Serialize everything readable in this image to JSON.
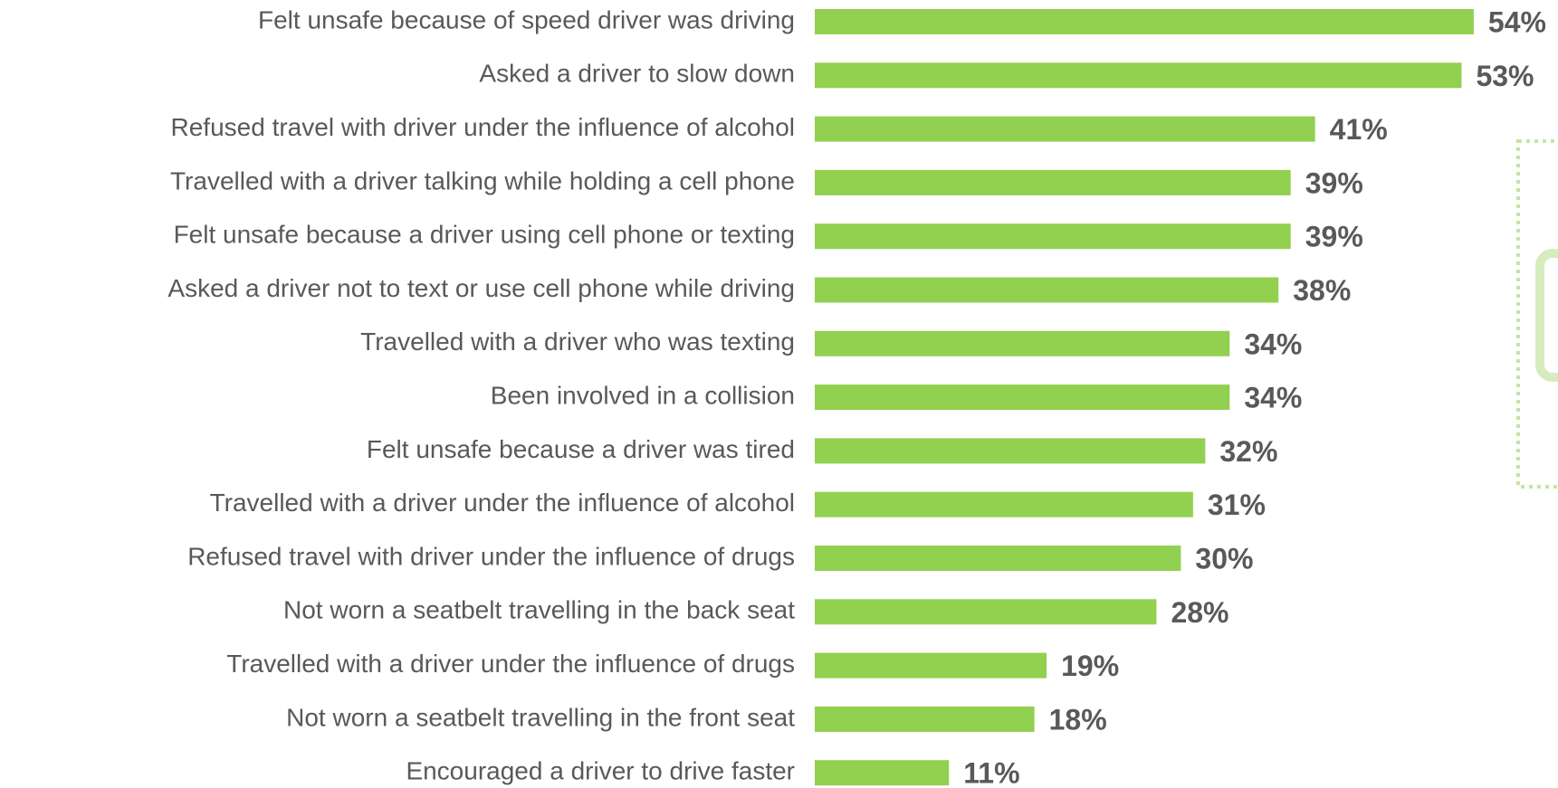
{
  "chart_data": {
    "type": "barh",
    "categories": [
      "Felt unsafe because of speed driver was driving",
      "Asked a driver to slow down",
      "Refused travel with driver under the influence of alcohol",
      "Travelled with a driver talking while holding a cell phone",
      "Felt unsafe because a driver using cell phone or texting",
      "Asked a driver not to text or use cell phone while driving",
      "Travelled with a driver who was texting",
      "Been involved in a collision",
      "Felt unsafe because a driver was tired",
      "Travelled with a driver under the influence of alcohol",
      "Refused travel with driver under the influence of drugs",
      "Not worn a seatbelt travelling in the back seat",
      "Travelled with a driver under the influence of drugs",
      "Not worn a seatbelt travelling in the front seat",
      "Encouraged a driver to drive faster"
    ],
    "values": [
      54,
      53,
      41,
      39,
      39,
      38,
      34,
      34,
      32,
      31,
      30,
      28,
      19,
      18,
      11
    ],
    "value_labels": [
      "54%",
      "53%",
      "41%",
      "39%",
      "39%",
      "38%",
      "34%",
      "34%",
      "32%",
      "31%",
      "30%",
      "28%",
      "19%",
      "18%",
      "11%"
    ],
    "color": "#92d050"
  }
}
